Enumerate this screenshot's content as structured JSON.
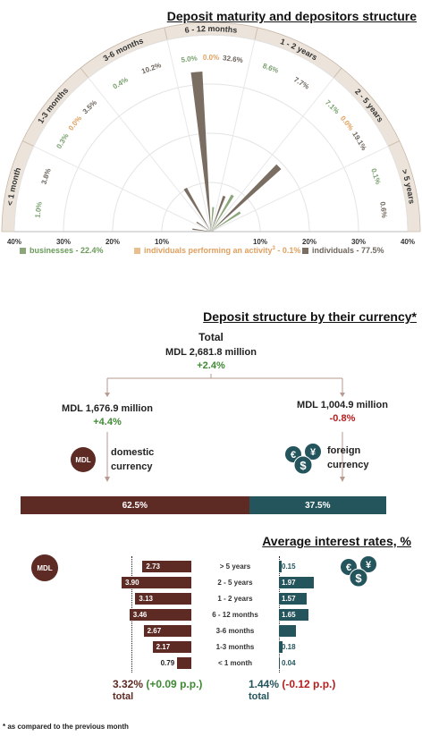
{
  "polar": {
    "title": "Deposit maturity and depositors structure",
    "categories": [
      "< 1 month",
      "1-3 months",
      "3-6 months",
      "6 - 12 months",
      "1 - 2 years",
      "2 - 5 years",
      "> 5 years"
    ],
    "axis_ticks": [
      "40%",
      "30%",
      "20%",
      "10%",
      "10%",
      "20%",
      "30%",
      "40%"
    ],
    "legend": {
      "businesses": "businesses - 22.4%",
      "individuals_activity": "individuals performing an activity",
      "individuals_activity_sup": "3",
      "individuals_activity_val": " - 0.1%",
      "individuals": "individuals - 77.5%"
    },
    "labels": [
      {
        "text": "1.0%",
        "color": "#7aa06f"
      },
      {
        "text": "3.8%",
        "color": "#6e655d"
      },
      {
        "text": "0.3%",
        "color": "#7aa06f"
      },
      {
        "text": "0.0%",
        "color": "#e0a060"
      },
      {
        "text": "3.5%",
        "color": "#6e655d"
      },
      {
        "text": "0.4%",
        "color": "#7aa06f"
      },
      {
        "text": "10.2%",
        "color": "#6e655d"
      },
      {
        "text": "5.0%",
        "color": "#7aa06f"
      },
      {
        "text": "0.0%",
        "color": "#e0a060"
      },
      {
        "text": "32.6%",
        "color": "#6e655d"
      },
      {
        "text": "8.6%",
        "color": "#7aa06f"
      },
      {
        "text": "7.7%",
        "color": "#6e655d"
      },
      {
        "text": "7.1%",
        "color": "#7aa06f"
      },
      {
        "text": "0.0%",
        "color": "#e0a060"
      },
      {
        "text": "19.1%",
        "color": "#6e655d"
      },
      {
        "text": "0.1%",
        "color": "#7aa06f"
      },
      {
        "text": "0.6%",
        "color": "#6e655d"
      }
    ]
  },
  "chart_data": [
    {
      "type": "bar",
      "subtype": "polar",
      "title": "Deposit maturity and depositors structure",
      "categories": [
        "< 1 month",
        "1-3 months",
        "3-6 months",
        "6 - 12 months",
        "1 - 2 years",
        "2 - 5 years",
        "> 5 years"
      ],
      "series": [
        {
          "name": "businesses",
          "share": 22.4,
          "values": [
            1.0,
            0.3,
            0.4,
            5.0,
            8.6,
            7.1,
            0.1
          ],
          "color": "#8aa67a"
        },
        {
          "name": "individuals performing an activity",
          "share": 0.1,
          "values": [
            0.0,
            0.0,
            0.0,
            0.0,
            0.0,
            0.0,
            0.0
          ],
          "color": "#e0a060"
        },
        {
          "name": "individuals",
          "share": 77.5,
          "values": [
            3.8,
            3.5,
            10.2,
            32.6,
            7.7,
            19.1,
            0.6
          ],
          "color": "#7a6e63"
        }
      ],
      "rlim": [
        0,
        40
      ],
      "legend_position": "bottom"
    },
    {
      "type": "bar",
      "title": "Deposit structure by their currency*",
      "categories": [
        "domestic currency",
        "foreign currency"
      ],
      "values": [
        62.5,
        37.5
      ]
    },
    {
      "type": "bar",
      "subtype": "butterfly",
      "title": "Average interest rates, %",
      "categories": [
        "> 5 years",
        "2 - 5 years",
        "1 - 2 years",
        "6 - 12 months",
        "3-6 months",
        "1-3 months",
        "< 1 month"
      ],
      "series": [
        {
          "name": "MDL",
          "values": [
            2.73,
            3.9,
            3.13,
            3.46,
            2.67,
            2.17,
            0.79
          ],
          "color": "#5e2a24"
        },
        {
          "name": "foreign",
          "values": [
            0.15,
            1.97,
            1.57,
            1.65,
            0.93,
            0.18,
            0.04
          ],
          "color": "#24545c"
        }
      ]
    }
  ],
  "currency": {
    "title": "Deposit structure by their currency*",
    "total_label": "Total",
    "total_value": "MDL 2,681.8 million",
    "total_change": "+2.4%",
    "domestic_value": "MDL 1,676.9 million",
    "domestic_change": "+4.4%",
    "domestic_label_1": "domestic",
    "domestic_label_2": "currency",
    "foreign_value": "MDL 1,004.9 million",
    "foreign_change": "-0.8%",
    "foreign_label_1": "foreign",
    "foreign_label_2": "currency",
    "mdl_badge": "MDL",
    "domestic_pct": "62.5%",
    "foreign_pct": "37.5%",
    "domestic_share": 62.5,
    "foreign_share": 37.5,
    "domestic_color": "#5e2a24",
    "foreign_color": "#24545c"
  },
  "rates": {
    "title": "Average interest rates, %",
    "mdl_badge": "MDL",
    "categories": [
      "> 5 years",
      "2 - 5 years",
      "1 - 2 years",
      "6 - 12 months",
      "3-6 months",
      "1-3 months",
      "< 1 month"
    ],
    "mdl_labels": [
      "2.73",
      "3.90",
      "3.13",
      "3.46",
      "2.67",
      "2.17",
      "0.79"
    ],
    "fx_labels": [
      "0.15",
      "1.97",
      "1.57",
      "1.65",
      "0.93",
      "0.18",
      "0.04"
    ],
    "mdl_total": "3.32%",
    "mdl_total_change": "(+0.09 p.p.)",
    "fx_total": "1.44%",
    "fx_total_change": "(-0.12 p.p.)",
    "total_word": "total"
  },
  "footnote": "* as compared to the previous month"
}
